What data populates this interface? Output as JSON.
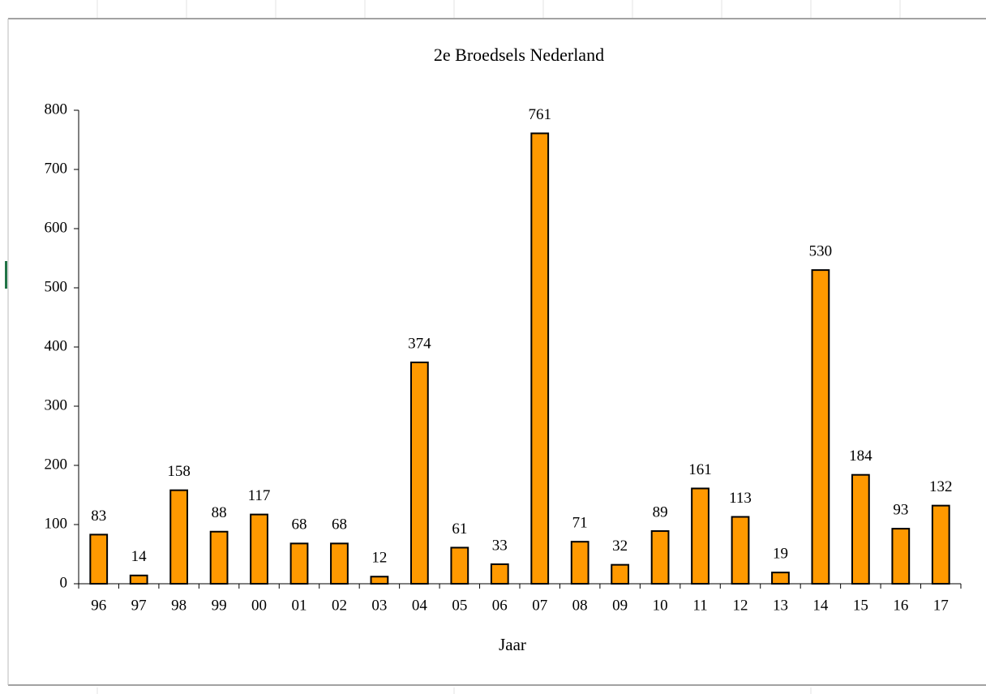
{
  "chart_data": {
    "type": "bar",
    "title": "2e Broedsels Nederland",
    "x_label": "Jaar",
    "categories": [
      "96",
      "97",
      "98",
      "99",
      "00",
      "01",
      "02",
      "03",
      "04",
      "05",
      "06",
      "07",
      "08",
      "09",
      "10",
      "11",
      "12",
      "13",
      "14",
      "15",
      "16",
      "17"
    ],
    "values": [
      83,
      14,
      158,
      88,
      117,
      68,
      68,
      12,
      374,
      61,
      33,
      761,
      71,
      32,
      89,
      161,
      113,
      19,
      530,
      184,
      93,
      132
    ],
    "color": "#ff9900",
    "ylim": [
      0,
      800
    ],
    "yticks": [
      0,
      100,
      200,
      300,
      400,
      500,
      600,
      700,
      800
    ],
    "grid": false
  }
}
